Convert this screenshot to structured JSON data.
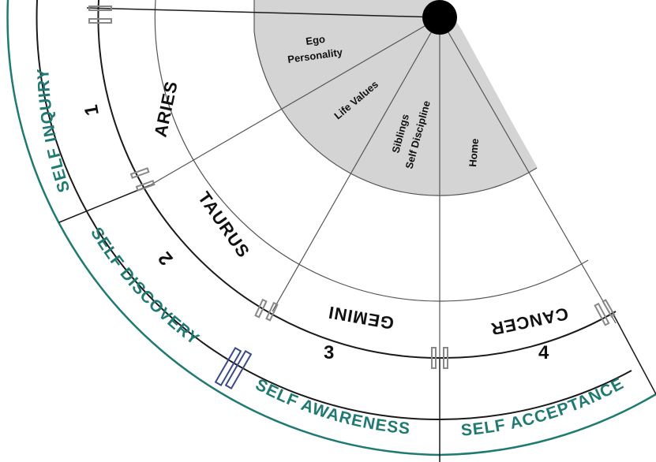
{
  "colors": {
    "accent": "#1f7a72",
    "highlight": "#d4d4d4",
    "marker_blue": "#3a4a8a"
  },
  "outer_ring": {
    "self_inquiry": "SELF INQUIRY",
    "self_discovery": "SELF DISCOVERY",
    "self_awareness": "SELF AWARENESS",
    "self_acceptance": "SELF ACCEPTANCE"
  },
  "signs": {
    "aries": "ARIES",
    "taurus": "TAURUS",
    "gemini": "GEMINI",
    "cancer": "CANCER"
  },
  "houses": {
    "h1": "1",
    "h2": "2",
    "h3": "3",
    "h4": "4"
  },
  "inner": {
    "ego": "Ego",
    "personality": "Personality",
    "life_values": "Life Values",
    "siblings": "Siblings",
    "self_discipline": "Self Discipline",
    "home": "Home"
  }
}
